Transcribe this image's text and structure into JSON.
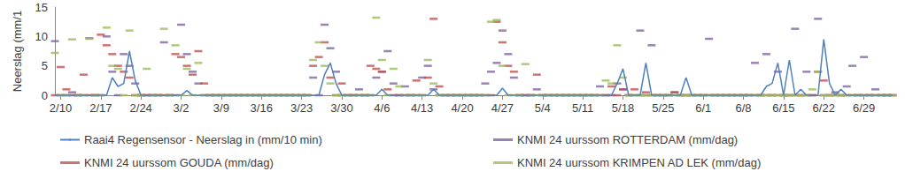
{
  "chart_data": {
    "type": "line",
    "y_label": "Neerslag (mm/1",
    "categories": [
      null,
      "2/10",
      null,
      null,
      null,
      null,
      null,
      null,
      "2/17",
      null,
      null,
      null,
      null,
      null,
      null,
      "2/24",
      null,
      null,
      null,
      null,
      null,
      null,
      "3/2",
      null,
      null,
      null,
      null,
      null,
      null,
      "3/9",
      null,
      null,
      null,
      null,
      null,
      null,
      "3/16",
      null,
      null,
      null,
      null,
      null,
      null,
      "3/23",
      null,
      null,
      null,
      null,
      null,
      null,
      "3/30",
      null,
      null,
      null,
      null,
      null,
      null,
      "4/6",
      null,
      null,
      null,
      null,
      null,
      null,
      "4/13",
      null,
      null,
      null,
      null,
      null,
      null,
      "4/20",
      null,
      null,
      null,
      null,
      null,
      null,
      "4/27",
      null,
      null,
      null,
      null,
      null,
      null,
      "5/4",
      null,
      null,
      null,
      null,
      null,
      null,
      "5/11",
      null,
      null,
      null,
      null,
      null,
      null,
      "5/18",
      null,
      null,
      null,
      null,
      null,
      null,
      "5/25",
      null,
      null,
      null,
      null,
      null,
      null,
      "6/1",
      null,
      null,
      null,
      null,
      null,
      null,
      "6/8",
      null,
      null,
      null,
      null,
      null,
      null,
      "6/15",
      null,
      null,
      null,
      null,
      null,
      null,
      "6/22",
      null,
      null,
      null,
      null,
      null,
      null,
      "6/29",
      null,
      null,
      null,
      null,
      null
    ],
    "series": [
      {
        "name": "Raai4 Regensensor - Neerslag in (mm/10 min)",
        "type": "line",
        "color": "#4f81bd",
        "line_style": "solid",
        "marker": "none",
        "values": [
          0,
          0,
          0,
          0,
          0,
          0,
          0,
          0,
          0,
          0,
          3,
          1.5,
          2,
          7.5,
          2.5,
          0,
          0,
          0,
          0,
          0,
          0,
          0,
          0,
          0.8,
          0,
          0,
          0,
          0,
          0,
          0,
          0,
          0,
          0,
          0,
          0,
          0,
          0,
          0,
          0,
          0,
          0,
          0,
          0,
          0,
          0,
          0,
          0,
          3.5,
          5.5,
          2,
          0,
          0,
          0,
          0,
          0,
          0,
          0,
          1,
          0,
          0,
          0,
          0,
          0,
          0,
          0,
          0,
          1,
          0,
          0,
          0,
          0,
          0,
          0,
          0,
          0,
          0,
          0,
          0,
          1.2,
          0,
          0,
          0,
          0,
          0,
          0,
          0,
          0,
          0,
          0,
          0,
          0,
          0,
          0,
          0,
          0,
          0,
          0,
          0,
          2,
          4.5,
          0,
          0,
          0,
          5.5,
          0,
          0,
          0,
          0,
          0,
          0,
          3,
          0,
          0,
          0,
          0,
          0,
          0,
          0,
          0,
          0,
          0,
          0,
          0,
          0,
          1.5,
          2,
          5.5,
          0,
          6,
          0,
          1,
          0,
          0,
          0,
          9.5,
          2,
          0,
          1,
          0,
          0,
          0,
          0,
          0,
          0,
          0,
          0,
          0
        ]
      },
      {
        "name": "KNMI 24 uurssom ROTTERDAM (mm/dag)",
        "type": "scatter",
        "color": "#8064a2",
        "marker": "dash",
        "values": [
          9.2,
          0,
          0,
          0.5,
          0,
          0,
          9.7,
          0,
          0,
          10,
          4,
          0,
          7,
          5,
          2,
          0,
          0,
          0,
          0,
          9,
          0,
          0,
          12,
          7,
          4,
          2,
          0,
          0,
          0,
          0,
          0,
          0,
          0,
          0,
          0,
          0,
          0,
          0,
          0,
          0,
          0,
          0,
          0,
          0,
          0,
          3,
          0,
          12,
          8,
          4,
          0,
          0,
          0,
          1,
          0,
          0,
          3,
          4,
          7.5,
          2,
          0,
          1.5,
          0,
          0,
          3,
          5,
          1,
          0,
          0,
          0,
          0,
          0,
          0,
          0,
          0,
          2,
          4,
          5.5,
          11,
          7,
          3,
          0,
          0,
          0,
          1,
          0,
          0,
          0,
          0,
          0,
          0,
          0,
          0,
          0,
          0,
          1.5,
          0,
          0,
          2,
          1,
          0,
          0,
          11,
          0,
          8.5,
          0,
          0,
          0,
          0.5,
          0,
          0,
          0,
          0,
          0,
          9.6,
          0,
          0,
          0,
          0,
          0,
          0,
          0,
          5.5,
          0,
          7,
          0,
          4,
          0,
          0,
          11.3,
          0,
          4,
          0,
          13,
          0,
          0,
          0.5,
          0,
          1.5,
          5,
          0,
          6.5,
          0,
          1,
          0,
          0,
          0
        ]
      },
      {
        "name": "KNMI 24 uurssom GOUDA (mm/dag)",
        "type": "scatter",
        "color": "#c0504d",
        "marker": "dash",
        "values": [
          0,
          4.8,
          1,
          0,
          0,
          3.5,
          0,
          0,
          10.3,
          8.5,
          7,
          5,
          4,
          3,
          0,
          0,
          0,
          0,
          0,
          0,
          0,
          7,
          6.5,
          5,
          3.5,
          7.5,
          2,
          0,
          0,
          0,
          0,
          0,
          0,
          0,
          0,
          0,
          0,
          0,
          0,
          0,
          0,
          0,
          0,
          0,
          0,
          5,
          6.5,
          9,
          3,
          0,
          2,
          0,
          0,
          0,
          0,
          5,
          4.5,
          4,
          1,
          0,
          0,
          0,
          0,
          2.5,
          0,
          3,
          13,
          1.5,
          0,
          0,
          0,
          0,
          0,
          0,
          0,
          0,
          0,
          12.5,
          9,
          5,
          4,
          0,
          0,
          0,
          3.5,
          0,
          0,
          0,
          0,
          0,
          0,
          0,
          0,
          0,
          0,
          0,
          0,
          1.5,
          0,
          1,
          0,
          1,
          0,
          0.5,
          0,
          0,
          0,
          0,
          0.5,
          0,
          0,
          0,
          0,
          0,
          0,
          0,
          0,
          0,
          0,
          0,
          0,
          0,
          0,
          0,
          0,
          0,
          0,
          0,
          0,
          0,
          0,
          0,
          0,
          4,
          2.5,
          0,
          0,
          0,
          0,
          0,
          0,
          0,
          0,
          0,
          0,
          0,
          0
        ]
      },
      {
        "name": "KNMI 24 uurssom KRIMPEN AD LEK (mm/dag)",
        "type": "scatter",
        "color": "#9bbb59",
        "marker": "dash",
        "values": [
          7.2,
          0,
          0,
          9.5,
          0,
          0,
          9.6,
          0,
          0,
          11.5,
          5,
          4.5,
          0,
          11,
          0,
          0,
          4.5,
          0,
          0,
          11.3,
          0,
          8.5,
          0,
          4.5,
          0,
          5.5,
          0,
          0,
          0,
          0,
          0,
          0,
          0,
          0,
          0,
          0,
          0,
          0,
          0,
          0,
          0,
          0,
          0,
          0,
          0,
          6,
          9,
          5,
          2,
          0,
          0,
          0,
          0,
          0,
          0,
          0,
          13.2,
          6,
          0,
          4.5,
          1.5,
          0,
          0,
          0,
          0,
          6,
          2,
          0,
          0,
          0,
          0,
          0,
          0,
          0,
          0,
          0,
          12.5,
          12.8,
          5,
          0,
          0,
          0,
          5.3,
          0,
          0,
          0,
          0,
          0,
          0,
          0,
          0,
          0,
          0,
          0,
          0,
          0,
          2.5,
          2,
          8.5,
          3,
          0,
          0,
          0,
          0,
          0,
          0,
          0,
          0,
          0,
          0,
          0,
          0,
          0,
          0,
          0,
          0,
          0,
          0,
          0,
          0,
          0,
          0,
          0,
          0,
          0,
          0,
          0,
          0,
          0,
          0,
          0,
          0,
          1,
          4,
          0,
          0,
          0,
          0,
          0,
          0,
          0,
          0,
          0,
          0,
          0,
          0,
          0
        ]
      }
    ],
    "ylim": [
      0,
      15
    ],
    "yticks": [
      0,
      5,
      10,
      15
    ],
    "grid": false,
    "legend": "bottom"
  }
}
